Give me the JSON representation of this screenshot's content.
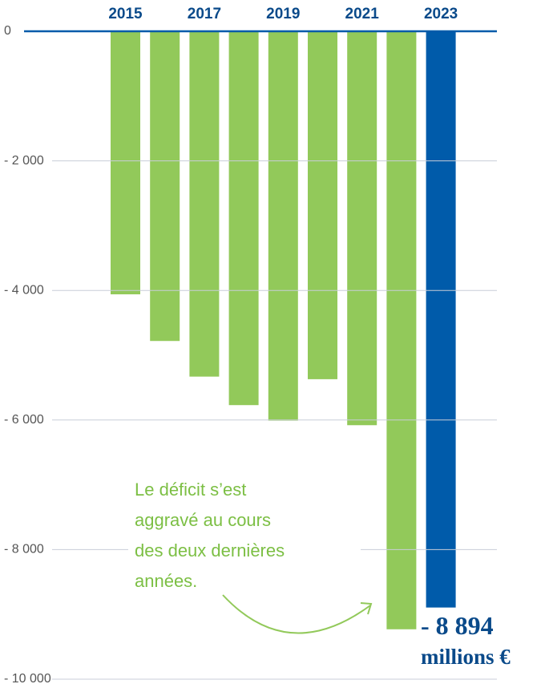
{
  "chart_data": {
    "type": "bar",
    "categories": [
      "2015",
      null,
      "2017",
      null,
      "2019",
      null,
      "2021",
      null,
      "2023"
    ],
    "values": [
      -4060,
      -4780,
      -5330,
      -5770,
      -6010,
      -5370,
      -6080,
      -9230,
      -8894
    ],
    "colors": [
      "#92c95a",
      "#92c95a",
      "#92c95a",
      "#92c95a",
      "#92c95a",
      "#92c95a",
      "#92c95a",
      "#92c95a",
      "#005baa"
    ],
    "value_labels": [
      null,
      null,
      null,
      null,
      null,
      null,
      null,
      null,
      "- 8 894"
    ],
    "unit_label": "millions €",
    "ylim": [
      -10000,
      0
    ],
    "yticks": [
      0,
      {
        "value": -2000,
        "label": "- 2 000"
      },
      {
        "value": -4000,
        "label": "- 4 000"
      },
      {
        "value": -6000,
        "label": "- 6 000"
      },
      {
        "value": -8000,
        "label": "- 8 000"
      },
      {
        "value": -10000,
        "label": "- 10 000"
      }
    ],
    "grid": true,
    "annotation": [
      "Le déficit s’est",
      "aggravé au cours",
      "des deux dernières",
      "années."
    ]
  }
}
